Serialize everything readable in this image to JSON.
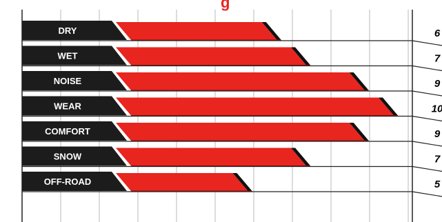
{
  "chart_data": {
    "type": "bar",
    "orientation": "horizontal",
    "categories": [
      "DRY",
      "WET",
      "NOISE",
      "WEAR",
      "COMFORT",
      "SNOW",
      "OFF-ROAD"
    ],
    "values": [
      6,
      7,
      9,
      10,
      9,
      7,
      5
    ],
    "value_labels": [
      "6",
      "7",
      "9",
      "10",
      "9",
      "7",
      "5"
    ],
    "title_fragment": "g",
    "xlim": [
      0,
      10
    ],
    "grid": true,
    "legend": "none",
    "colors": {
      "bar": "#e8251f",
      "bar_shadow": "#8a1410",
      "stripe": "#111111",
      "label_tab": "#1c1c1c",
      "grid": "#b8b8b8",
      "title": "#e8251f",
      "value_text": "#000000"
    }
  }
}
